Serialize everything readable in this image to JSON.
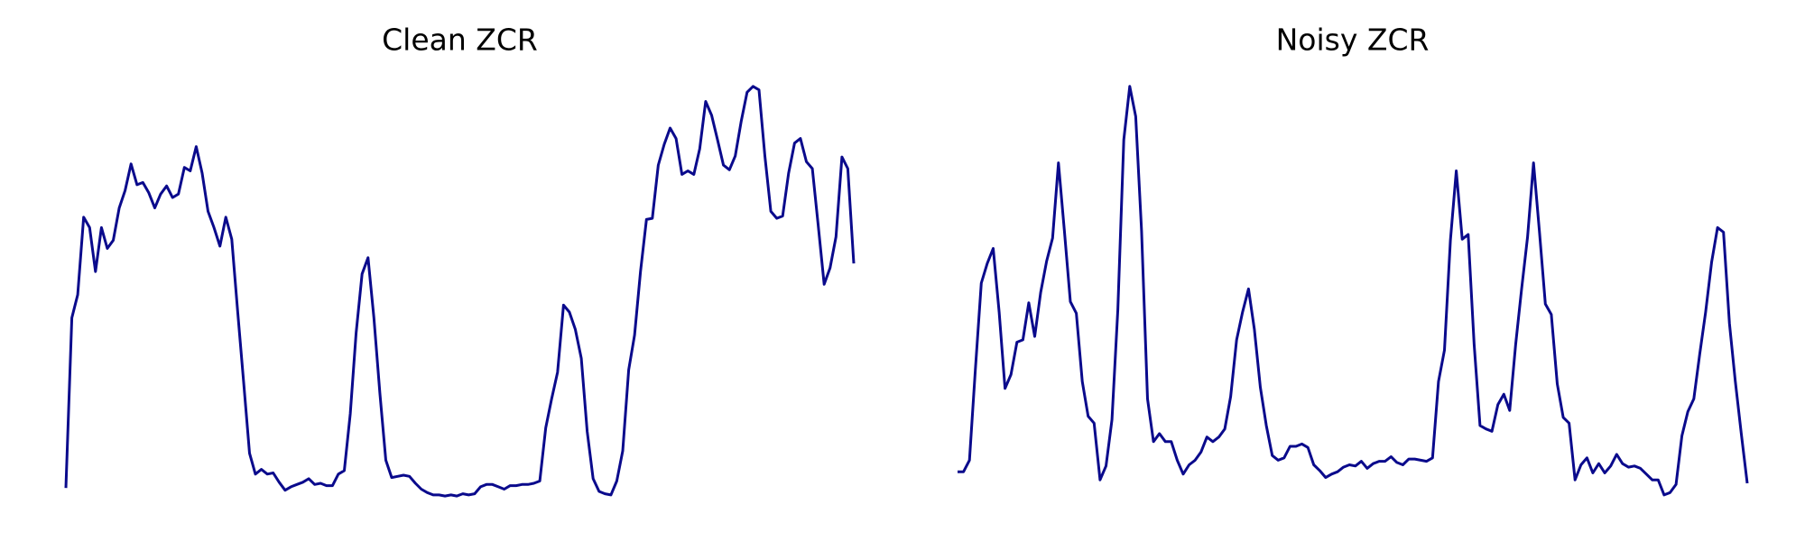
{
  "chart_data": [
    {
      "type": "line",
      "title": "Clean ZCR",
      "color": "#0a0a8c",
      "ylim": [
        0,
        360
      ],
      "values": [
        10,
        157,
        177,
        244,
        235,
        197,
        235,
        217,
        224,
        252,
        267,
        290,
        272,
        274,
        265,
        252,
        264,
        271,
        261,
        264,
        287,
        284,
        305,
        282,
        249,
        235,
        219,
        244,
        225,
        162,
        102,
        40,
        22,
        26,
        22,
        23,
        15,
        8,
        11,
        13,
        15,
        18,
        13,
        14,
        12,
        12,
        22,
        25,
        74,
        144,
        195,
        209,
        157,
        92,
        34,
        19,
        20,
        21,
        20,
        14,
        9,
        6,
        4,
        4,
        3,
        4,
        3,
        5,
        4,
        5,
        11,
        13,
        13,
        11,
        9,
        12,
        12,
        13,
        13,
        14,
        16,
        62,
        87,
        110,
        168,
        162,
        147,
        122,
        59,
        18,
        7,
        5,
        4,
        16,
        42,
        112,
        142,
        197,
        242,
        243,
        289,
        307,
        321,
        312,
        281,
        284,
        281,
        303,
        344,
        332,
        311,
        289,
        285,
        297,
        327,
        352,
        357,
        354,
        297,
        249,
        243,
        245,
        282,
        308,
        312,
        292,
        286,
        237,
        186,
        200,
        227,
        296,
        286,
        204
      ]
    },
    {
      "type": "line",
      "title": "Noisy ZCR",
      "color": "#0a0a8c",
      "ylim": [
        0,
        360
      ],
      "values": [
        24,
        24,
        34,
        112,
        187,
        204,
        217,
        162,
        96,
        108,
        136,
        138,
        170,
        141,
        179,
        206,
        226,
        291,
        232,
        171,
        161,
        102,
        72,
        66,
        17,
        29,
        69,
        164,
        311,
        357,
        331,
        232,
        87,
        50,
        57,
        50,
        50,
        34,
        22,
        30,
        34,
        41,
        54,
        50,
        54,
        61,
        89,
        138,
        162,
        182,
        147,
        97,
        64,
        38,
        34,
        36,
        46,
        46,
        48,
        45,
        30,
        25,
        19,
        22,
        24,
        28,
        30,
        29,
        33,
        27,
        31,
        33,
        33,
        37,
        32,
        30,
        35,
        35,
        34,
        33,
        36,
        102,
        129,
        224,
        284,
        225,
        229,
        134,
        64,
        61,
        59,
        82,
        91,
        77,
        134,
        182,
        227,
        291,
        232,
        169,
        160,
        100,
        71,
        66,
        17,
        30,
        36,
        23,
        31,
        23,
        29,
        39,
        31,
        28,
        29,
        27,
        22,
        17,
        17,
        4,
        6,
        13,
        55,
        76,
        87,
        126,
        162,
        205,
        235,
        231,
        152,
        102,
        57,
        14
      ]
    }
  ]
}
